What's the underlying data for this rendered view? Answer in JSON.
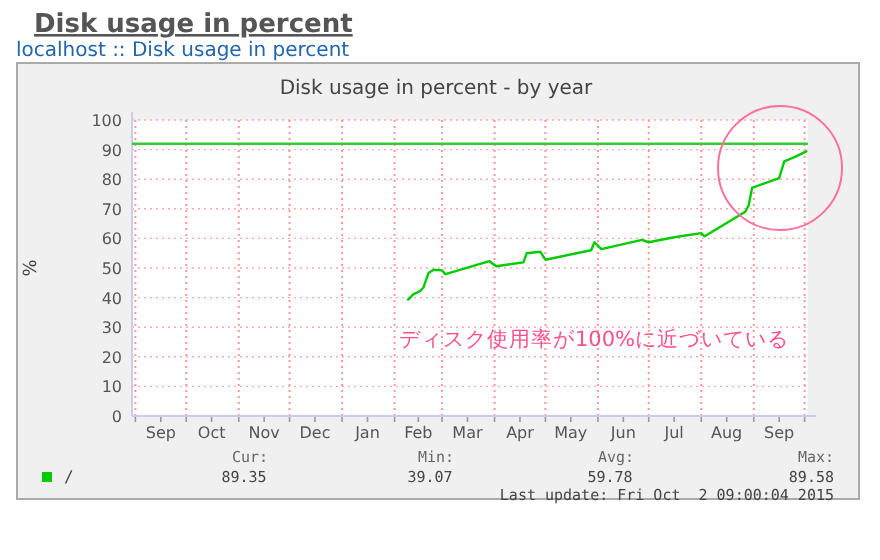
{
  "chart_data": {
    "type": "line",
    "title": "Disk usage in percent - by year",
    "ylabel": "%",
    "x": [
      "2015-02-09",
      "2015-02-12",
      "2015-02-16",
      "2015-02-18",
      "2015-02-21",
      "2015-02-24",
      "2015-03-01",
      "2015-03-03",
      "2015-03-29",
      "2015-04-02",
      "2015-04-18",
      "2015-04-20",
      "2015-04-28",
      "2015-05-01",
      "2015-05-28",
      "2015-05-30",
      "2015-06-03",
      "2015-06-27",
      "2015-07-01",
      "2015-07-16",
      "2015-08-01",
      "2015-08-03",
      "2015-08-27",
      "2015-08-29",
      "2015-08-31",
      "2015-09-16",
      "2015-09-19",
      "2015-09-26",
      "2015-10-02"
    ],
    "series": [
      {
        "name": "/",
        "color": "#00cc00",
        "values": [
          39.3,
          41.1,
          42.2,
          43.4,
          48.3,
          49.4,
          49.2,
          47.9,
          52.3,
          50.6,
          51.9,
          55,
          55.5,
          52.8,
          56,
          58.7,
          56.4,
          59.5,
          58.7,
          60.4,
          61.8,
          60.7,
          69,
          71.2,
          77.1,
          80.4,
          86,
          87.7,
          89.4
        ]
      }
    ],
    "xlim": [
      "2014-08-30",
      "2015-10-03"
    ],
    "xticks": [
      {
        "value": "2014-09-01",
        "label": null
      },
      {
        "value": "2014-09-16",
        "label": "Sep"
      },
      {
        "value": "2014-10-01",
        "label": null
      },
      {
        "value": "2014-10-16",
        "label": "Oct"
      },
      {
        "value": "2014-11-01",
        "label": null
      },
      {
        "value": "2014-11-16",
        "label": "Nov"
      },
      {
        "value": "2014-12-01",
        "label": null
      },
      {
        "value": "2014-12-16",
        "label": "Dec"
      },
      {
        "value": "2015-01-01",
        "label": null
      },
      {
        "value": "2015-01-16",
        "label": "Jan"
      },
      {
        "value": "2015-02-01",
        "label": null
      },
      {
        "value": "2015-02-15",
        "label": "Feb"
      },
      {
        "value": "2015-03-01",
        "label": null
      },
      {
        "value": "2015-03-16",
        "label": "Mar"
      },
      {
        "value": "2015-04-01",
        "label": null
      },
      {
        "value": "2015-04-16",
        "label": "Apr"
      },
      {
        "value": "2015-05-01",
        "label": null
      },
      {
        "value": "2015-05-16",
        "label": "May"
      },
      {
        "value": "2015-06-01",
        "label": null
      },
      {
        "value": "2015-06-16",
        "label": "Jun"
      },
      {
        "value": "2015-07-01",
        "label": null
      },
      {
        "value": "2015-07-16",
        "label": "Jul"
      },
      {
        "value": "2015-08-01",
        "label": null
      },
      {
        "value": "2015-08-16",
        "label": "Aug"
      },
      {
        "value": "2015-09-01",
        "label": null
      },
      {
        "value": "2015-09-16",
        "label": "Sep"
      },
      {
        "value": "2015-10-01",
        "label": null
      }
    ],
    "ylim": [
      0,
      100
    ],
    "yticks": [
      0,
      10,
      20,
      30,
      40,
      50,
      60,
      70,
      80,
      90,
      100
    ],
    "grid": true,
    "legend": "bottom",
    "marker": "none",
    "line_style": "solid",
    "ref_lines": [
      {
        "axis": "y",
        "value": 92,
        "color": "#33cc33"
      }
    ],
    "annotations": [
      "Disk usage in percent",
      "localhost :: Disk usage in percent",
      "Cur:",
      "89.35",
      "Min:",
      "39.07",
      "Avg:",
      "59.78",
      "Max:",
      "89.58",
      "Last update: Fri Oct  2 09:00:04 2015",
      "ディスク使用率が100%に近づいている"
    ]
  }
}
